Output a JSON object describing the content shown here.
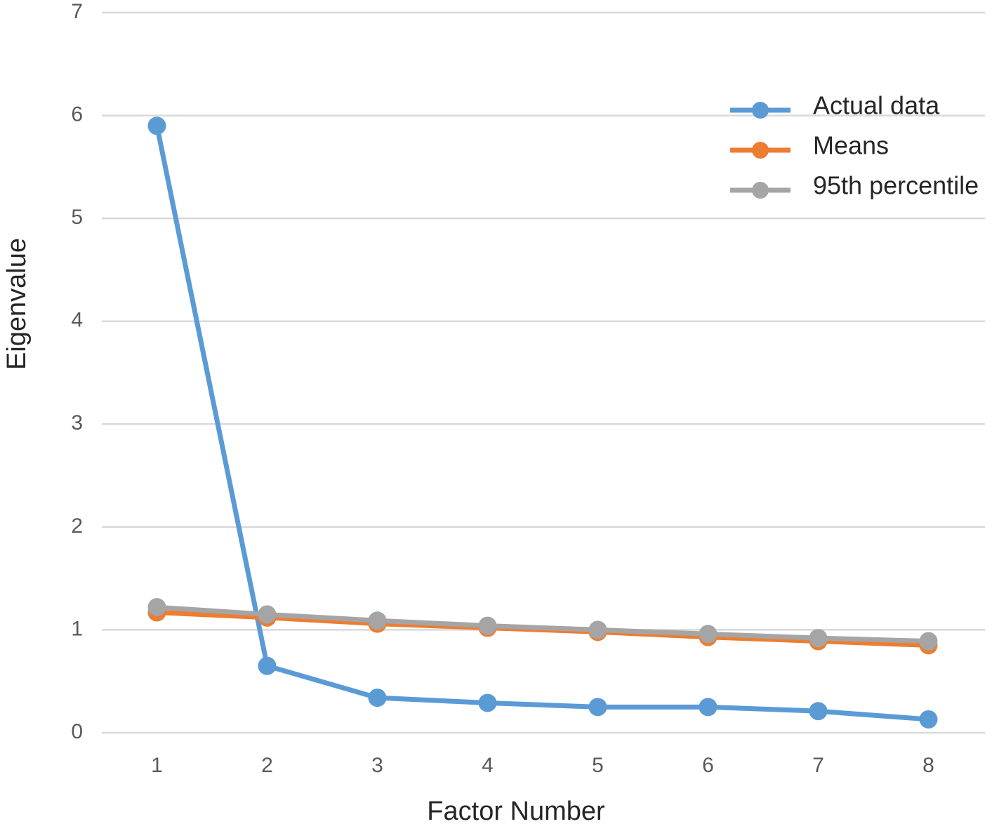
{
  "chart_data": {
    "type": "line",
    "x_label": "Factor Number",
    "y_label": "Eigenvalue",
    "categories": [
      "1",
      "2",
      "3",
      "4",
      "5",
      "6",
      "7",
      "8"
    ],
    "series": [
      {
        "name": "Actual data",
        "color": "#5b9bd5",
        "values": [
          5.9,
          0.65,
          0.34,
          0.29,
          0.25,
          0.25,
          0.21,
          0.13
        ]
      },
      {
        "name": "Means",
        "color": "#ed7d31",
        "values": [
          1.17,
          1.12,
          1.06,
          1.02,
          0.98,
          0.93,
          0.89,
          0.85
        ]
      },
      {
        "name": "95th percentile",
        "color": "#a5a5a5",
        "values": [
          1.22,
          1.15,
          1.09,
          1.04,
          1.0,
          0.96,
          0.92,
          0.89
        ]
      }
    ],
    "ylim": [
      0,
      7
    ],
    "yticks": [
      0,
      1,
      2,
      3,
      4,
      5,
      6,
      7
    ],
    "grid": true,
    "legend": "top-right"
  }
}
